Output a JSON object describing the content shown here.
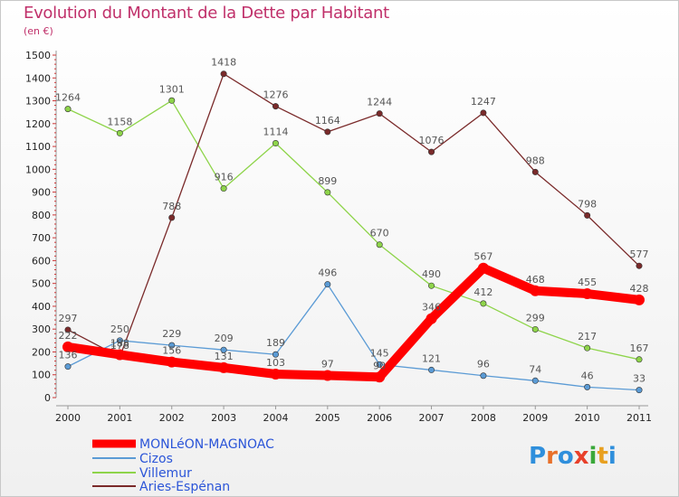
{
  "title": "Evolution du Montant de la Dette par Habitant",
  "unit": "(en €)",
  "logo": {
    "text": "Proxiti"
  },
  "chart_data": {
    "type": "line",
    "x": [
      "2000",
      "2001",
      "2002",
      "2003",
      "2004",
      "2005",
      "2006",
      "2007",
      "2008",
      "2009",
      "2010",
      "2011"
    ],
    "ylim": [
      0,
      1500
    ],
    "yticks": [
      0,
      100,
      200,
      300,
      400,
      500,
      600,
      700,
      800,
      900,
      1000,
      1100,
      1200,
      1300,
      1400,
      1500
    ],
    "grid": false,
    "legend_position": "bottom-left",
    "series": [
      {
        "name": "MONLéON-MAGNOAC",
        "color": "#ff0000",
        "values": [
          222,
          188,
          156,
          131,
          103,
          97,
          90,
          346,
          567,
          468,
          455,
          428
        ]
      },
      {
        "name": "Cizos",
        "color": "#5b9bd5",
        "values": [
          136,
          250,
          229,
          209,
          189,
          496,
          145,
          121,
          96,
          74,
          46,
          33
        ]
      },
      {
        "name": "Villemur",
        "color": "#8ed44a",
        "values": [
          1264,
          1158,
          1301,
          916,
          1114,
          899,
          670,
          490,
          412,
          299,
          217,
          167
        ]
      },
      {
        "name": "Aries-Espénan",
        "color": "#7a2a2a",
        "values": [
          297,
          178,
          788,
          1418,
          1276,
          1164,
          1244,
          1076,
          1247,
          988,
          798,
          577
        ]
      }
    ]
  }
}
